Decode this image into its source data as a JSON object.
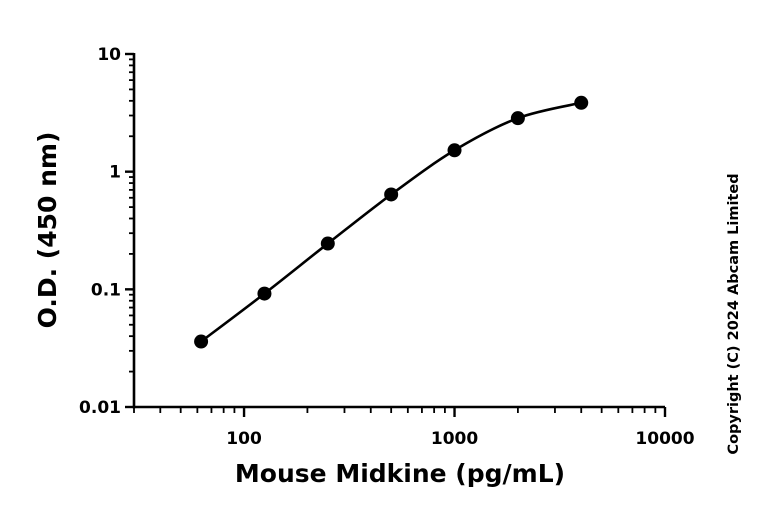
{
  "chart_data": {
    "type": "scatter",
    "xlabel": "Mouse Midkine (pg/mL)",
    "ylabel": "O.D. (450 nm)",
    "x_scale": "log",
    "y_scale": "log",
    "xlim": [
      30,
      10000
    ],
    "ylim": [
      0.01,
      10
    ],
    "x_ticks": [
      100,
      1000,
      10000
    ],
    "x_tick_labels": [
      "100",
      "1000",
      "10000"
    ],
    "y_ticks": [
      0.01,
      0.1,
      1,
      10
    ],
    "y_tick_labels": [
      "0.01",
      "0.1",
      "1",
      "10"
    ],
    "grid": false,
    "fit_curve": true,
    "series": [
      {
        "x": [
          62.5,
          125,
          250,
          500,
          1000,
          2000,
          4000
        ],
        "y": [
          0.036,
          0.092,
          0.245,
          0.64,
          1.52,
          2.85,
          3.85
        ]
      }
    ]
  },
  "copyright": "Copyright (C) 2024 Abcam Limited",
  "colors": {
    "ink": "#000000",
    "background": "#ffffff"
  }
}
